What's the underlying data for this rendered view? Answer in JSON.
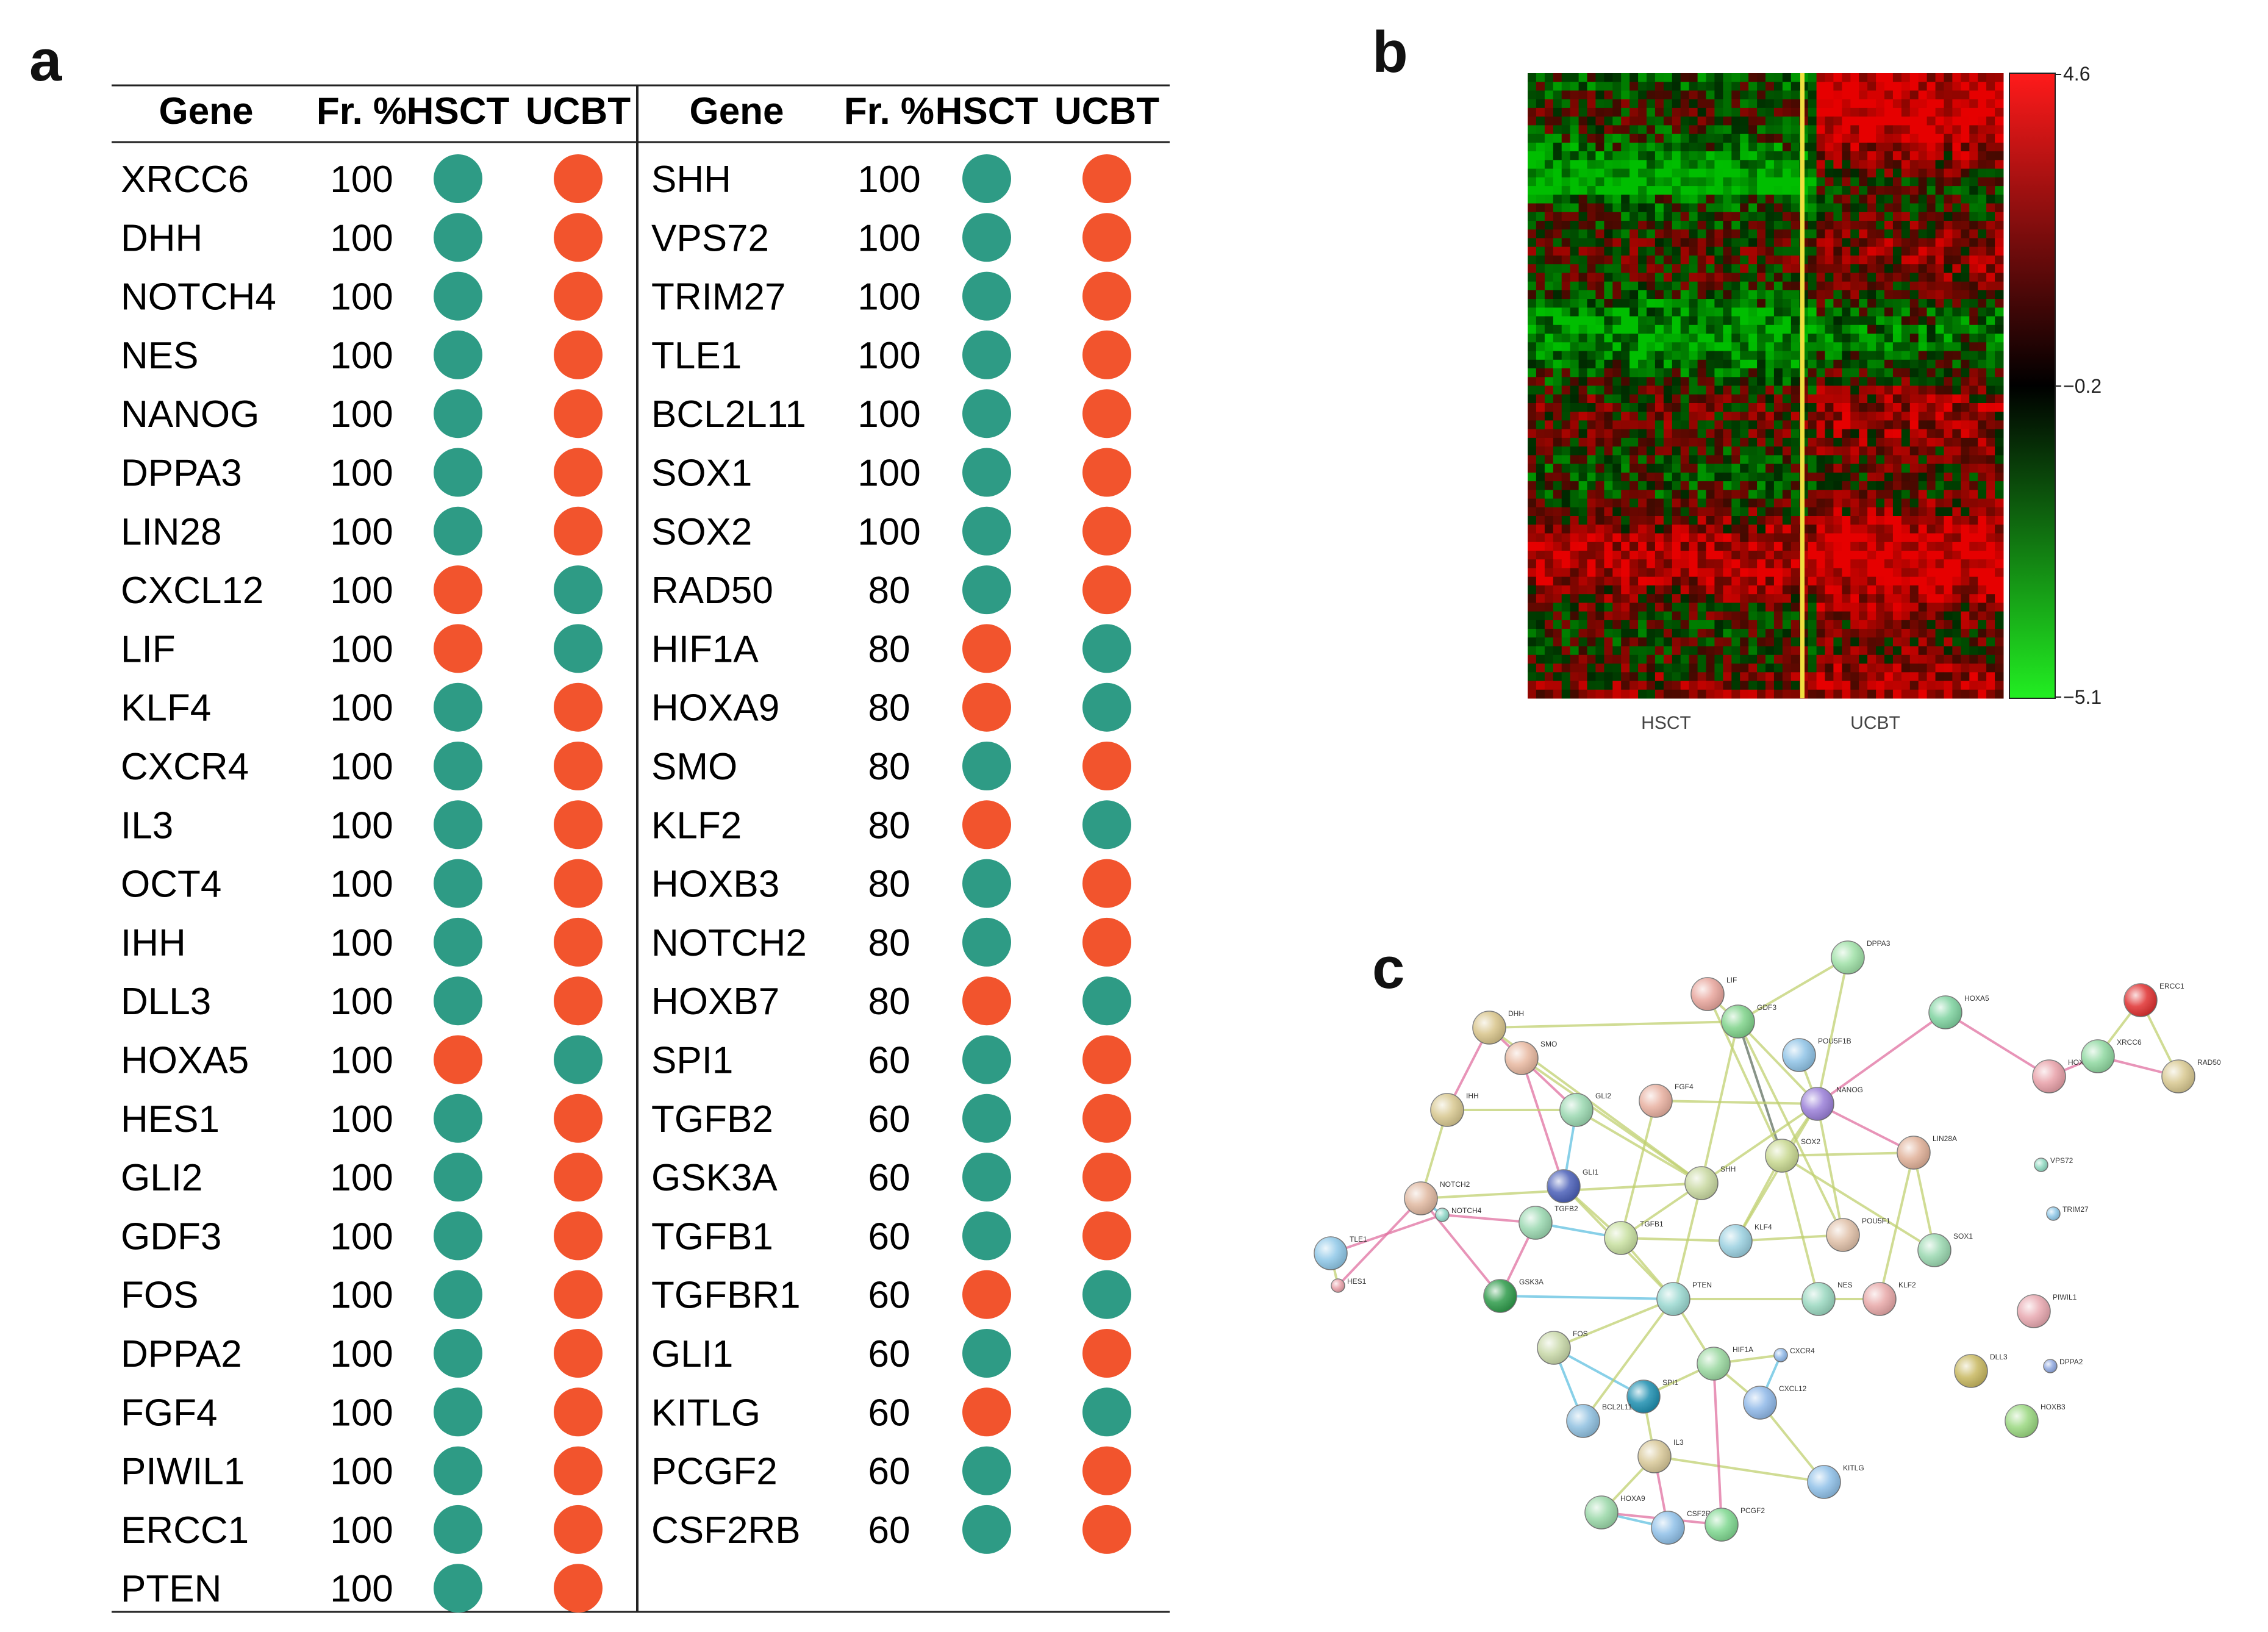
{
  "panels": {
    "a": "a",
    "b": "b",
    "c": "c"
  },
  "colors": {
    "hsct_up": "#2e9b85",
    "ucbt_up": "#f2542d"
  },
  "table": {
    "headers": [
      "Gene",
      "Fr. %",
      "HSCT",
      "UCBT"
    ],
    "left": [
      {
        "gene": "XRCC6",
        "fr": "100",
        "hsct": "green",
        "ucbt": "red"
      },
      {
        "gene": "DHH",
        "fr": "100",
        "hsct": "green",
        "ucbt": "red"
      },
      {
        "gene": "NOTCH4",
        "fr": "100",
        "hsct": "green",
        "ucbt": "red"
      },
      {
        "gene": "NES",
        "fr": "100",
        "hsct": "green",
        "ucbt": "red"
      },
      {
        "gene": "NANOG",
        "fr": "100",
        "hsct": "green",
        "ucbt": "red"
      },
      {
        "gene": "DPPA3",
        "fr": "100",
        "hsct": "green",
        "ucbt": "red"
      },
      {
        "gene": "LIN28",
        "fr": "100",
        "hsct": "green",
        "ucbt": "red"
      },
      {
        "gene": "CXCL12",
        "fr": "100",
        "hsct": "red",
        "ucbt": "green"
      },
      {
        "gene": "LIF",
        "fr": "100",
        "hsct": "red",
        "ucbt": "green"
      },
      {
        "gene": "KLF4",
        "fr": "100",
        "hsct": "green",
        "ucbt": "red"
      },
      {
        "gene": "CXCR4",
        "fr": "100",
        "hsct": "green",
        "ucbt": "red"
      },
      {
        "gene": "IL3",
        "fr": "100",
        "hsct": "green",
        "ucbt": "red"
      },
      {
        "gene": "OCT4",
        "fr": "100",
        "hsct": "green",
        "ucbt": "red"
      },
      {
        "gene": "IHH",
        "fr": "100",
        "hsct": "green",
        "ucbt": "red"
      },
      {
        "gene": "DLL3",
        "fr": "100",
        "hsct": "green",
        "ucbt": "red"
      },
      {
        "gene": "HOXA5",
        "fr": "100",
        "hsct": "red",
        "ucbt": "green"
      },
      {
        "gene": "HES1",
        "fr": "100",
        "hsct": "green",
        "ucbt": "red"
      },
      {
        "gene": "GLI2",
        "fr": "100",
        "hsct": "green",
        "ucbt": "red"
      },
      {
        "gene": "GDF3",
        "fr": "100",
        "hsct": "green",
        "ucbt": "red"
      },
      {
        "gene": "FOS",
        "fr": "100",
        "hsct": "green",
        "ucbt": "red"
      },
      {
        "gene": "DPPA2",
        "fr": "100",
        "hsct": "green",
        "ucbt": "red"
      },
      {
        "gene": "FGF4",
        "fr": "100",
        "hsct": "green",
        "ucbt": "red"
      },
      {
        "gene": "PIWIL1",
        "fr": "100",
        "hsct": "green",
        "ucbt": "red"
      },
      {
        "gene": "ERCC1",
        "fr": "100",
        "hsct": "green",
        "ucbt": "red"
      },
      {
        "gene": "PTEN",
        "fr": "100",
        "hsct": "green",
        "ucbt": "red"
      }
    ],
    "right": [
      {
        "gene": "SHH",
        "fr": "100",
        "hsct": "green",
        "ucbt": "red"
      },
      {
        "gene": "VPS72",
        "fr": "100",
        "hsct": "green",
        "ucbt": "red"
      },
      {
        "gene": "TRIM27",
        "fr": "100",
        "hsct": "green",
        "ucbt": "red"
      },
      {
        "gene": "TLE1",
        "fr": "100",
        "hsct": "green",
        "ucbt": "red"
      },
      {
        "gene": "BCL2L11",
        "fr": "100",
        "hsct": "green",
        "ucbt": "red"
      },
      {
        "gene": "SOX1",
        "fr": "100",
        "hsct": "green",
        "ucbt": "red"
      },
      {
        "gene": "SOX2",
        "fr": "100",
        "hsct": "green",
        "ucbt": "red"
      },
      {
        "gene": "RAD50",
        "fr": "80",
        "hsct": "green",
        "ucbt": "red"
      },
      {
        "gene": "HIF1A",
        "fr": "80",
        "hsct": "red",
        "ucbt": "green"
      },
      {
        "gene": "HOXA9",
        "fr": "80",
        "hsct": "red",
        "ucbt": "green"
      },
      {
        "gene": "SMO",
        "fr": "80",
        "hsct": "green",
        "ucbt": "red"
      },
      {
        "gene": "KLF2",
        "fr": "80",
        "hsct": "red",
        "ucbt": "green"
      },
      {
        "gene": "HOXB3",
        "fr": "80",
        "hsct": "green",
        "ucbt": "red"
      },
      {
        "gene": "NOTCH2",
        "fr": "80",
        "hsct": "green",
        "ucbt": "red"
      },
      {
        "gene": "HOXB7",
        "fr": "80",
        "hsct": "red",
        "ucbt": "green"
      },
      {
        "gene": "SPI1",
        "fr": "60",
        "hsct": "green",
        "ucbt": "red"
      },
      {
        "gene": "TGFB2",
        "fr": "60",
        "hsct": "green",
        "ucbt": "red"
      },
      {
        "gene": "GSK3A",
        "fr": "60",
        "hsct": "green",
        "ucbt": "red"
      },
      {
        "gene": "TGFB1",
        "fr": "60",
        "hsct": "green",
        "ucbt": "red"
      },
      {
        "gene": "TGFBR1",
        "fr": "60",
        "hsct": "red",
        "ucbt": "green"
      },
      {
        "gene": "GLI1",
        "fr": "60",
        "hsct": "green",
        "ucbt": "red"
      },
      {
        "gene": "KITLG",
        "fr": "60",
        "hsct": "red",
        "ucbt": "green"
      },
      {
        "gene": "PCGF2",
        "fr": "60",
        "hsct": "green",
        "ucbt": "red"
      },
      {
        "gene": "CSF2RB",
        "fr": "60",
        "hsct": "green",
        "ucbt": "red"
      }
    ]
  },
  "heatmap": {
    "group_labels": [
      "HSCT",
      "UCBT"
    ],
    "colorbar_ticks": [
      "4.6",
      "−0.2",
      "−5.1"
    ],
    "colorbar_values": [
      4.6,
      -0.2,
      -5.1
    ]
  },
  "network": {
    "nodes": [
      {
        "name": "LIF",
        "color": "#e8a59c"
      },
      {
        "name": "DPPA3",
        "color": "#9ee0a6"
      },
      {
        "name": "GDF3",
        "color": "#7fd38a"
      },
      {
        "name": "DHH",
        "color": "#d8c48a"
      },
      {
        "name": "SMO",
        "color": "#e8b8a0"
      },
      {
        "name": "POU5F1B",
        "color": "#8fc3e6"
      },
      {
        "name": "HOXA5",
        "color": "#7fd3a0"
      },
      {
        "name": "ERCC1",
        "color": "#e03030"
      },
      {
        "name": "HOXB7",
        "color": "#e8a0a8"
      },
      {
        "name": "XRCC6",
        "color": "#8fd8a0"
      },
      {
        "name": "RAD50",
        "color": "#d8c890"
      },
      {
        "name": "NANOG",
        "color": "#9a7fd8"
      },
      {
        "name": "FGF4",
        "color": "#e8b0a0"
      },
      {
        "name": "GLI2",
        "color": "#9ad8b0"
      },
      {
        "name": "IHH",
        "color": "#d8c890"
      },
      {
        "name": "LIN28A",
        "color": "#e0b098"
      },
      {
        "name": "SOX2",
        "color": "#c8d890"
      },
      {
        "name": "VPS72",
        "color": "#8fd8c0"
      },
      {
        "name": "TRIM27",
        "color": "#8fc8e8"
      },
      {
        "name": "GLI1",
        "color": "#4a5fb8"
      },
      {
        "name": "SHH",
        "color": "#c8d8a0"
      },
      {
        "name": "NOTCH2",
        "color": "#e0b8a0"
      },
      {
        "name": "NOTCH4",
        "color": "#8fd8c8"
      },
      {
        "name": "TGFB2",
        "color": "#9ad8b0"
      },
      {
        "name": "TGFB1",
        "color": "#c8e0a0"
      },
      {
        "name": "KLF4",
        "color": "#9ad0e0"
      },
      {
        "name": "POU5F1",
        "color": "#e0c0a8"
      },
      {
        "name": "SOX1",
        "color": "#9ad8b0"
      },
      {
        "name": "TLE1",
        "color": "#8fc8e8"
      },
      {
        "name": "HES1",
        "color": "#e8a0a8"
      },
      {
        "name": "GSK3A",
        "color": "#2e9b4a"
      },
      {
        "name": "PTEN",
        "color": "#9ad8d0"
      },
      {
        "name": "NES",
        "color": "#9ad8c0"
      },
      {
        "name": "KLF2",
        "color": "#e8a8a8"
      },
      {
        "name": "PIWIL1",
        "color": "#e8a8b0"
      },
      {
        "name": "FOS",
        "color": "#c8d8a8"
      },
      {
        "name": "HIF1A",
        "color": "#9ad8a0"
      },
      {
        "name": "CXCR4",
        "color": "#8fb8e8"
      },
      {
        "name": "DLL3",
        "color": "#c8b860"
      },
      {
        "name": "DPPA2",
        "color": "#8fa8e0"
      },
      {
        "name": "SPI1",
        "color": "#1e8fb0"
      },
      {
        "name": "CXCL12",
        "color": "#8fb8e8"
      },
      {
        "name": "BCL2L11",
        "color": "#8fc0e0"
      },
      {
        "name": "HOXB3",
        "color": "#9ad880"
      },
      {
        "name": "IL3",
        "color": "#d8c898"
      },
      {
        "name": "KITLG",
        "color": "#8fc0e8"
      },
      {
        "name": "HOXA9",
        "color": "#9ad8a8"
      },
      {
        "name": "CSF2RB",
        "color": "#8fc0e8"
      },
      {
        "name": "PCGF2",
        "color": "#7fd890"
      }
    ]
  }
}
